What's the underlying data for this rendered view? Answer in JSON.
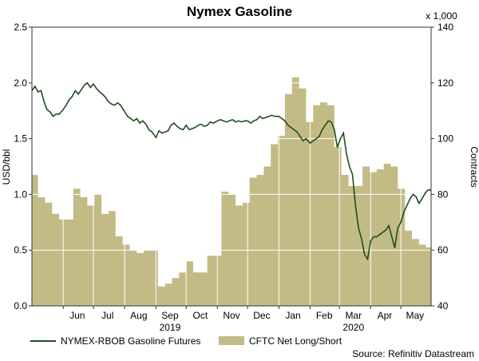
{
  "chart_data": {
    "title": "Nymex Gasoline",
    "type": "line+area",
    "left_axis": {
      "label": "USD/bbl",
      "range": [
        0,
        2.5
      ],
      "ticks": [
        "0.0",
        "0.5",
        "1.0",
        "1.5",
        "2.0",
        "2.5"
      ]
    },
    "right_axis": {
      "label": "Contracts",
      "multiplier_label": "x 1,000",
      "range": [
        40,
        140
      ],
      "ticks": [
        "40",
        "60",
        "80",
        "100",
        "120",
        "140"
      ]
    },
    "x_axis": {
      "start": "2019-05-01",
      "end": "2020-05-31",
      "month_labels": [
        {
          "label": "Jun",
          "date": "2019-06-15"
        },
        {
          "label": "Jul",
          "date": "2019-07-15"
        },
        {
          "label": "Aug",
          "date": "2019-08-15"
        },
        {
          "label": "Sep",
          "date": "2019-09-15"
        },
        {
          "label": "Oct",
          "date": "2019-10-15"
        },
        {
          "label": "Nov",
          "date": "2019-11-15"
        },
        {
          "label": "Dec",
          "date": "2019-12-15"
        },
        {
          "label": "Jan",
          "date": "2020-01-15"
        },
        {
          "label": "Feb",
          "date": "2020-02-15"
        },
        {
          "label": "Mar",
          "date": "2020-03-15"
        },
        {
          "label": "Apr",
          "date": "2020-04-15"
        },
        {
          "label": "May",
          "date": "2020-05-15"
        }
      ],
      "year_labels": [
        {
          "label": "2019",
          "date": "2019-09-15"
        },
        {
          "label": "2020",
          "date": "2020-03-15"
        }
      ]
    },
    "grid": true,
    "series": [
      {
        "name": "NYMEX-RBOB Gasoline Futures",
        "kind": "line",
        "axis": "left",
        "color": "#1f4d1f",
        "points": [
          [
            "2019-05-01",
            1.93
          ],
          [
            "2019-05-04",
            1.97
          ],
          [
            "2019-05-07",
            1.92
          ],
          [
            "2019-05-10",
            1.93
          ],
          [
            "2019-05-13",
            1.83
          ],
          [
            "2019-05-16",
            1.76
          ],
          [
            "2019-05-19",
            1.74
          ],
          [
            "2019-05-22",
            1.7
          ],
          [
            "2019-05-25",
            1.72
          ],
          [
            "2019-05-28",
            1.72
          ],
          [
            "2019-06-01",
            1.76
          ],
          [
            "2019-06-04",
            1.8
          ],
          [
            "2019-06-07",
            1.85
          ],
          [
            "2019-06-10",
            1.88
          ],
          [
            "2019-06-13",
            1.93
          ],
          [
            "2019-06-16",
            1.9
          ],
          [
            "2019-06-19",
            1.94
          ],
          [
            "2019-06-22",
            1.98
          ],
          [
            "2019-06-25",
            2.0
          ],
          [
            "2019-06-28",
            1.96
          ],
          [
            "2019-07-01",
            1.99
          ],
          [
            "2019-07-04",
            1.95
          ],
          [
            "2019-07-07",
            1.92
          ],
          [
            "2019-07-10",
            1.9
          ],
          [
            "2019-07-13",
            1.87
          ],
          [
            "2019-07-16",
            1.83
          ],
          [
            "2019-07-19",
            1.81
          ],
          [
            "2019-07-22",
            1.8
          ],
          [
            "2019-07-25",
            1.82
          ],
          [
            "2019-07-28",
            1.8
          ],
          [
            "2019-08-01",
            1.74
          ],
          [
            "2019-08-04",
            1.7
          ],
          [
            "2019-08-07",
            1.68
          ],
          [
            "2019-08-10",
            1.66
          ],
          [
            "2019-08-13",
            1.68
          ],
          [
            "2019-08-16",
            1.64
          ],
          [
            "2019-08-19",
            1.66
          ],
          [
            "2019-08-22",
            1.63
          ],
          [
            "2019-08-25",
            1.58
          ],
          [
            "2019-08-28",
            1.56
          ],
          [
            "2019-09-01",
            1.51
          ],
          [
            "2019-09-04",
            1.57
          ],
          [
            "2019-09-07",
            1.55
          ],
          [
            "2019-09-10",
            1.56
          ],
          [
            "2019-09-13",
            1.57
          ],
          [
            "2019-09-16",
            1.62
          ],
          [
            "2019-09-19",
            1.64
          ],
          [
            "2019-09-22",
            1.61
          ],
          [
            "2019-09-25",
            1.59
          ],
          [
            "2019-09-28",
            1.58
          ],
          [
            "2019-10-01",
            1.62
          ],
          [
            "2019-10-04",
            1.58
          ],
          [
            "2019-10-07",
            1.59
          ],
          [
            "2019-10-10",
            1.6
          ],
          [
            "2019-10-13",
            1.62
          ],
          [
            "2019-10-16",
            1.63
          ],
          [
            "2019-10-19",
            1.61
          ],
          [
            "2019-10-22",
            1.62
          ],
          [
            "2019-10-25",
            1.65
          ],
          [
            "2019-10-28",
            1.64
          ],
          [
            "2019-11-01",
            1.66
          ],
          [
            "2019-11-04",
            1.67
          ],
          [
            "2019-11-07",
            1.66
          ],
          [
            "2019-11-10",
            1.65
          ],
          [
            "2019-11-13",
            1.66
          ],
          [
            "2019-11-16",
            1.67
          ],
          [
            "2019-11-19",
            1.65
          ],
          [
            "2019-11-22",
            1.66
          ],
          [
            "2019-11-25",
            1.65
          ],
          [
            "2019-11-28",
            1.66
          ],
          [
            "2019-12-01",
            1.66
          ],
          [
            "2019-12-04",
            1.64
          ],
          [
            "2019-12-07",
            1.66
          ],
          [
            "2019-12-10",
            1.67
          ],
          [
            "2019-12-13",
            1.7
          ],
          [
            "2019-12-16",
            1.68
          ],
          [
            "2019-12-19",
            1.69
          ],
          [
            "2019-12-22",
            1.7
          ],
          [
            "2019-12-25",
            1.71
          ],
          [
            "2019-12-28",
            1.7
          ],
          [
            "2020-01-01",
            1.7
          ],
          [
            "2020-01-04",
            1.68
          ],
          [
            "2020-01-07",
            1.66
          ],
          [
            "2020-01-10",
            1.62
          ],
          [
            "2020-01-13",
            1.6
          ],
          [
            "2020-01-16",
            1.58
          ],
          [
            "2020-01-19",
            1.56
          ],
          [
            "2020-01-22",
            1.52
          ],
          [
            "2020-01-25",
            1.48
          ],
          [
            "2020-01-28",
            1.5
          ],
          [
            "2020-02-01",
            1.46
          ],
          [
            "2020-02-04",
            1.48
          ],
          [
            "2020-02-07",
            1.5
          ],
          [
            "2020-02-10",
            1.52
          ],
          [
            "2020-02-13",
            1.58
          ],
          [
            "2020-02-16",
            1.62
          ],
          [
            "2020-02-19",
            1.66
          ],
          [
            "2020-02-22",
            1.65
          ],
          [
            "2020-02-25",
            1.58
          ],
          [
            "2020-02-28",
            1.42
          ],
          [
            "2020-03-02",
            1.5
          ],
          [
            "2020-03-05",
            1.55
          ],
          [
            "2020-03-08",
            1.37
          ],
          [
            "2020-03-11",
            1.25
          ],
          [
            "2020-03-14",
            1.18
          ],
          [
            "2020-03-17",
            0.9
          ],
          [
            "2020-03-20",
            0.7
          ],
          [
            "2020-03-23",
            0.6
          ],
          [
            "2020-03-26",
            0.46
          ],
          [
            "2020-03-29",
            0.42
          ],
          [
            "2020-04-01",
            0.58
          ],
          [
            "2020-04-04",
            0.62
          ],
          [
            "2020-04-07",
            0.62
          ],
          [
            "2020-04-10",
            0.64
          ],
          [
            "2020-04-13",
            0.66
          ],
          [
            "2020-04-16",
            0.68
          ],
          [
            "2020-04-19",
            0.72
          ],
          [
            "2020-04-22",
            0.62
          ],
          [
            "2020-04-25",
            0.52
          ],
          [
            "2020-04-28",
            0.7
          ],
          [
            "2020-05-01",
            0.75
          ],
          [
            "2020-05-04",
            0.84
          ],
          [
            "2020-05-07",
            0.9
          ],
          [
            "2020-05-10",
            0.96
          ],
          [
            "2020-05-13",
            1.0
          ],
          [
            "2020-05-16",
            0.98
          ],
          [
            "2020-05-19",
            0.92
          ],
          [
            "2020-05-22",
            0.96
          ],
          [
            "2020-05-25",
            1.01
          ],
          [
            "2020-05-28",
            1.04
          ],
          [
            "2020-05-31",
            1.04
          ]
        ]
      },
      {
        "name": "CFTC Net Long/Short",
        "kind": "area",
        "axis": "right",
        "color": "#c3bb85",
        "points": [
          [
            "2019-05-01",
            87
          ],
          [
            "2019-05-07",
            79
          ],
          [
            "2019-05-14",
            77
          ],
          [
            "2019-05-21",
            73
          ],
          [
            "2019-05-28",
            71
          ],
          [
            "2019-06-04",
            71
          ],
          [
            "2019-06-11",
            82
          ],
          [
            "2019-06-18",
            79
          ],
          [
            "2019-06-25",
            76
          ],
          [
            "2019-07-02",
            80
          ],
          [
            "2019-07-09",
            73
          ],
          [
            "2019-07-16",
            74
          ],
          [
            "2019-07-23",
            65
          ],
          [
            "2019-07-30",
            62
          ],
          [
            "2019-08-06",
            60
          ],
          [
            "2019-08-13",
            59
          ],
          [
            "2019-08-20",
            60
          ],
          [
            "2019-08-27",
            60
          ],
          [
            "2019-09-03",
            47
          ],
          [
            "2019-09-10",
            48
          ],
          [
            "2019-09-17",
            50
          ],
          [
            "2019-09-24",
            52
          ],
          [
            "2019-10-01",
            56
          ],
          [
            "2019-10-08",
            52
          ],
          [
            "2019-10-15",
            52
          ],
          [
            "2019-10-22",
            58
          ],
          [
            "2019-10-29",
            58
          ],
          [
            "2019-11-05",
            81
          ],
          [
            "2019-11-12",
            80
          ],
          [
            "2019-11-19",
            76
          ],
          [
            "2019-11-26",
            77
          ],
          [
            "2019-12-03",
            86
          ],
          [
            "2019-12-10",
            87
          ],
          [
            "2019-12-17",
            90
          ],
          [
            "2019-12-24",
            98
          ],
          [
            "2019-12-31",
            101
          ],
          [
            "2020-01-07",
            116
          ],
          [
            "2020-01-14",
            122
          ],
          [
            "2020-01-21",
            118
          ],
          [
            "2020-01-28",
            106
          ],
          [
            "2020-02-04",
            112
          ],
          [
            "2020-02-11",
            113
          ],
          [
            "2020-02-18",
            112
          ],
          [
            "2020-02-25",
            97
          ],
          [
            "2020-03-03",
            87
          ],
          [
            "2020-03-10",
            83
          ],
          [
            "2020-03-17",
            83
          ],
          [
            "2020-03-24",
            90
          ],
          [
            "2020-03-31",
            88
          ],
          [
            "2020-04-07",
            89
          ],
          [
            "2020-04-14",
            91
          ],
          [
            "2020-04-21",
            90
          ],
          [
            "2020-04-28",
            82
          ],
          [
            "2020-05-05",
            67
          ],
          [
            "2020-05-12",
            64
          ],
          [
            "2020-05-19",
            62
          ],
          [
            "2020-05-26",
            61
          ],
          [
            "2020-05-31",
            61
          ]
        ]
      }
    ],
    "legend": {
      "placement": "bottom-left"
    },
    "source_note": "Source: Refinitiv Datastream"
  }
}
